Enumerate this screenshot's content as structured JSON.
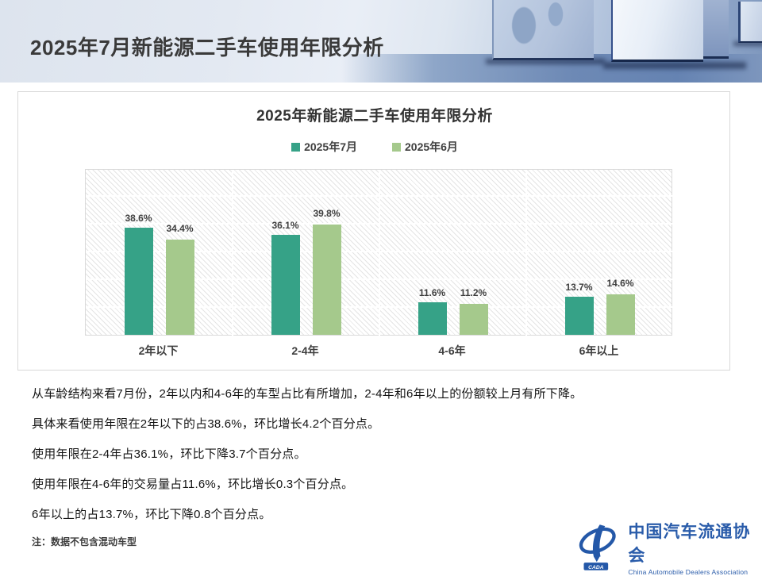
{
  "slide": {
    "title": "2025年7月新能源二手车使用年限分析"
  },
  "chart_data": {
    "type": "bar",
    "title": "2025年新能源二手车使用年限分析",
    "categories": [
      "2年以下",
      "2-4年",
      "4-6年",
      "6年以上"
    ],
    "series": [
      {
        "name": "2025年7月",
        "color": "#36a287",
        "values": [
          38.6,
          36.1,
          11.6,
          13.7
        ]
      },
      {
        "name": "2025年6月",
        "color": "#a5c98c",
        "values": [
          34.4,
          39.8,
          11.2,
          14.6
        ]
      }
    ],
    "unit": "%",
    "ylim": [
      0,
      60
    ],
    "gridline_step": 10,
    "grid": true,
    "legend_position": "top",
    "data_labels": true,
    "xlabel": "",
    "ylabel": ""
  },
  "analysis": {
    "paragraphs": [
      "从车龄结构来看7月份，2年以内和4-6年的车型占比有所增加，2-4年和6年以上的份额较上月有所下降。",
      "具体来看使用年限在2年以下的占38.6%，环比增长4.2个百分点。",
      "使用年限在2-4年占36.1%，环比下降3.7个百分点。",
      "使用年限在4-6年的交易量占11.6%，环比增长0.3个百分点。",
      "6年以上的占13.7%，环比下降0.8个百分点。"
    ],
    "note": "注：数据不包含混动车型"
  },
  "footer": {
    "org_name_cn": "中国汽车流通协会",
    "org_name_en": "China Automobile Dealers Association",
    "logo_text": "CADA",
    "logo_color": "#2458a8"
  }
}
